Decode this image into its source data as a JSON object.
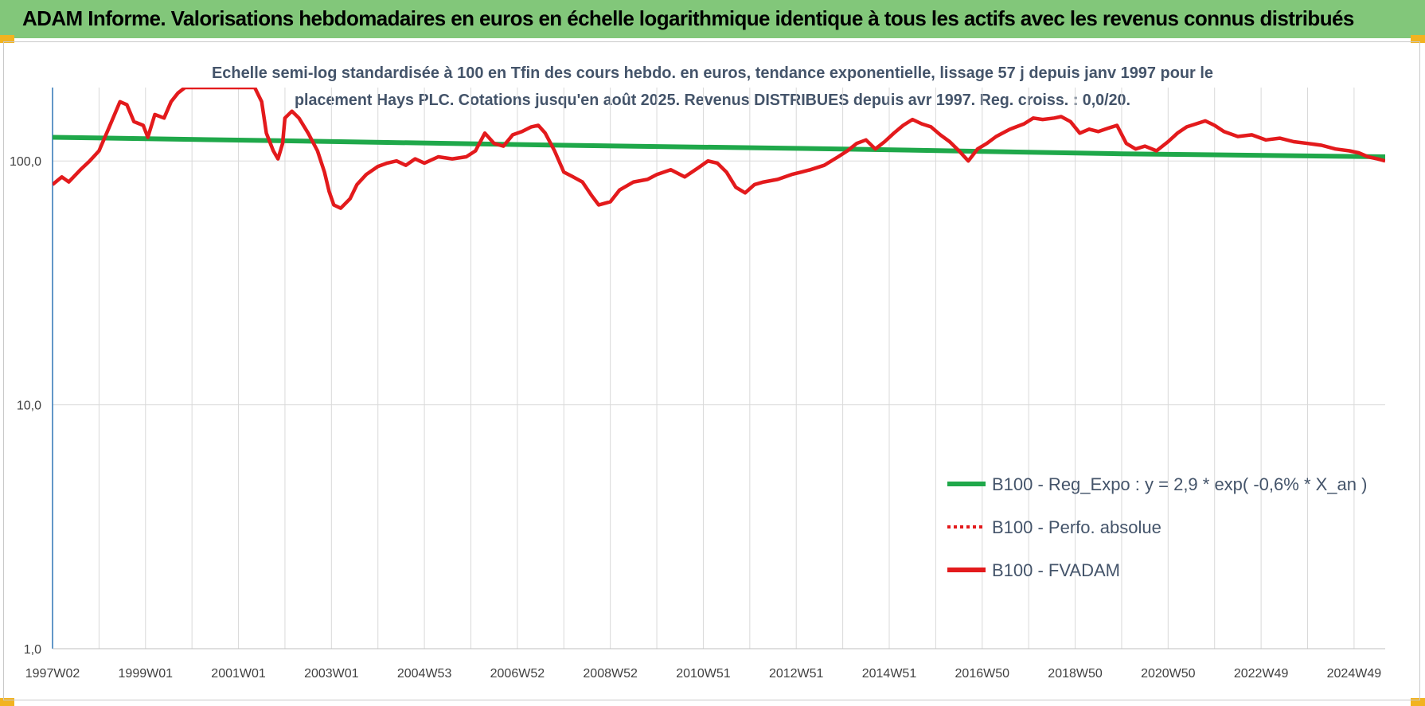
{
  "banner": {
    "title": "ADAM Informe. Valorisations hebdomadaires en euros en échelle logarithmique identique à tous les actifs avec les revenus connus distribués"
  },
  "colors": {
    "banner_bg": "#82c77a",
    "corner": "#f2b320",
    "reg_line": "#1fa84a",
    "perf_line": "#e31a1c",
    "fvadam_line": "#e31a1c",
    "axis_line": "#2e75b6",
    "grid": "#d9d9d9"
  },
  "chart_data": {
    "type": "line",
    "title_lines": [
      "Echelle semi-log standardisée à 100 en Tfin des cours hebdo. en euros, tendance exponentielle, lissage 57 j depuis janv 1997 pour le",
      "placement Hays PLC. Cotations jusqu'en août 2025. Revenus DISTRIBUES depuis avr 1997. Reg. croiss. : 0,0/20."
    ],
    "y_scale": "log",
    "ylim": [
      1,
      200
    ],
    "y_ticks": [
      {
        "value": 1,
        "label": "1,0"
      },
      {
        "value": 10,
        "label": "10,0"
      },
      {
        "value": 100,
        "label": "100,0"
      }
    ],
    "xlim": [
      1997.0,
      2025.67
    ],
    "x_ticks": [
      {
        "value": 1997.0,
        "label": "1997W02"
      },
      {
        "value": 1999.0,
        "label": "1999W01"
      },
      {
        "value": 2001.0,
        "label": "2001W01"
      },
      {
        "value": 2003.0,
        "label": "2003W01"
      },
      {
        "value": 2005.0,
        "label": "2004W53"
      },
      {
        "value": 2007.0,
        "label": "2006W52"
      },
      {
        "value": 2009.0,
        "label": "2008W52"
      },
      {
        "value": 2011.0,
        "label": "2010W51"
      },
      {
        "value": 2013.0,
        "label": "2012W51"
      },
      {
        "value": 2015.0,
        "label": "2014W51"
      },
      {
        "value": 2017.0,
        "label": "2016W50"
      },
      {
        "value": 2019.0,
        "label": "2018W50"
      },
      {
        "value": 2021.0,
        "label": "2020W50"
      },
      {
        "value": 2023.0,
        "label": "2022W49"
      },
      {
        "value": 2025.0,
        "label": "2024W49"
      }
    ],
    "legend_position": "bottom-right",
    "grid": "vertical",
    "series": [
      {
        "name": "B100 - Reg_Expo : y = 2,9 * exp( -0,6% *  X_an )",
        "style": "solid-thick",
        "color": "#1fa84a",
        "points": [
          [
            1997.0,
            125
          ],
          [
            2002.0,
            121
          ],
          [
            2008.0,
            116
          ],
          [
            2014.0,
            112
          ],
          [
            2020.0,
            107
          ],
          [
            2025.67,
            104
          ]
        ]
      },
      {
        "name": "B100 - Perfo. absolue",
        "style": "dotted",
        "color": "#e31a1c",
        "points": []
      },
      {
        "name": "B100 - FVADAM",
        "style": "solid-thick",
        "color": "#e31a1c",
        "points": [
          [
            1997.0,
            80
          ],
          [
            1997.2,
            86
          ],
          [
            1997.35,
            82
          ],
          [
            1997.6,
            92
          ],
          [
            1997.8,
            100
          ],
          [
            1998.0,
            110
          ],
          [
            1998.2,
            135
          ],
          [
            1998.45,
            175
          ],
          [
            1998.6,
            170
          ],
          [
            1998.75,
            145
          ],
          [
            1998.95,
            140
          ],
          [
            1999.05,
            125
          ],
          [
            1999.2,
            155
          ],
          [
            1999.4,
            150
          ],
          [
            1999.55,
            175
          ],
          [
            1999.7,
            190
          ],
          [
            1999.85,
            200
          ],
          [
            2000.9,
            200
          ],
          [
            2001.15,
            200
          ],
          [
            2001.35,
            200
          ],
          [
            2001.5,
            175
          ],
          [
            2001.6,
            130
          ],
          [
            2001.75,
            110
          ],
          [
            2001.85,
            102
          ],
          [
            2001.95,
            118
          ],
          [
            2002.0,
            150
          ],
          [
            2002.15,
            160
          ],
          [
            2002.3,
            150
          ],
          [
            2002.5,
            130
          ],
          [
            2002.7,
            110
          ],
          [
            2002.85,
            90
          ],
          [
            2002.95,
            75
          ],
          [
            2003.05,
            66
          ],
          [
            2003.2,
            64
          ],
          [
            2003.4,
            70
          ],
          [
            2003.55,
            80
          ],
          [
            2003.75,
            88
          ],
          [
            2004.0,
            95
          ],
          [
            2004.2,
            98
          ],
          [
            2004.4,
            100
          ],
          [
            2004.6,
            96
          ],
          [
            2004.8,
            102
          ],
          [
            2005.0,
            98
          ],
          [
            2005.3,
            104
          ],
          [
            2005.6,
            102
          ],
          [
            2005.9,
            104
          ],
          [
            2006.1,
            110
          ],
          [
            2006.3,
            130
          ],
          [
            2006.5,
            118
          ],
          [
            2006.7,
            115
          ],
          [
            2006.9,
            128
          ],
          [
            2007.1,
            132
          ],
          [
            2007.3,
            138
          ],
          [
            2007.45,
            140
          ],
          [
            2007.6,
            130
          ],
          [
            2007.8,
            110
          ],
          [
            2008.0,
            90
          ],
          [
            2008.2,
            86
          ],
          [
            2008.4,
            82
          ],
          [
            2008.6,
            72
          ],
          [
            2008.75,
            66
          ],
          [
            2009.0,
            68
          ],
          [
            2009.2,
            76
          ],
          [
            2009.5,
            82
          ],
          [
            2009.8,
            84
          ],
          [
            2010.0,
            88
          ],
          [
            2010.3,
            92
          ],
          [
            2010.6,
            86
          ],
          [
            2010.9,
            94
          ],
          [
            2011.1,
            100
          ],
          [
            2011.3,
            98
          ],
          [
            2011.5,
            90
          ],
          [
            2011.7,
            78
          ],
          [
            2011.9,
            74
          ],
          [
            2012.1,
            80
          ],
          [
            2012.3,
            82
          ],
          [
            2012.6,
            84
          ],
          [
            2012.9,
            88
          ],
          [
            2013.1,
            90
          ],
          [
            2013.3,
            92
          ],
          [
            2013.6,
            96
          ],
          [
            2013.9,
            104
          ],
          [
            2014.1,
            110
          ],
          [
            2014.3,
            118
          ],
          [
            2014.5,
            122
          ],
          [
            2014.7,
            112
          ],
          [
            2014.9,
            120
          ],
          [
            2015.1,
            130
          ],
          [
            2015.3,
            140
          ],
          [
            2015.5,
            148
          ],
          [
            2015.7,
            142
          ],
          [
            2015.9,
            138
          ],
          [
            2016.1,
            128
          ],
          [
            2016.3,
            120
          ],
          [
            2016.5,
            110
          ],
          [
            2016.7,
            100
          ],
          [
            2016.9,
            112
          ],
          [
            2017.1,
            118
          ],
          [
            2017.3,
            126
          ],
          [
            2017.6,
            135
          ],
          [
            2017.9,
            142
          ],
          [
            2018.1,
            150
          ],
          [
            2018.3,
            148
          ],
          [
            2018.55,
            150
          ],
          [
            2018.7,
            152
          ],
          [
            2018.9,
            145
          ],
          [
            2019.1,
            130
          ],
          [
            2019.3,
            135
          ],
          [
            2019.5,
            132
          ],
          [
            2019.7,
            136
          ],
          [
            2019.9,
            140
          ],
          [
            2020.1,
            118
          ],
          [
            2020.3,
            112
          ],
          [
            2020.5,
            115
          ],
          [
            2020.75,
            110
          ],
          [
            2021.0,
            120
          ],
          [
            2021.2,
            130
          ],
          [
            2021.4,
            138
          ],
          [
            2021.6,
            142
          ],
          [
            2021.8,
            146
          ],
          [
            2022.0,
            140
          ],
          [
            2022.2,
            132
          ],
          [
            2022.5,
            126
          ],
          [
            2022.8,
            128
          ],
          [
            2023.1,
            122
          ],
          [
            2023.4,
            124
          ],
          [
            2023.7,
            120
          ],
          [
            2024.0,
            118
          ],
          [
            2024.3,
            116
          ],
          [
            2024.6,
            112
          ],
          [
            2024.9,
            110
          ],
          [
            2025.1,
            108
          ],
          [
            2025.3,
            104
          ],
          [
            2025.5,
            102
          ],
          [
            2025.67,
            100
          ]
        ]
      }
    ]
  }
}
